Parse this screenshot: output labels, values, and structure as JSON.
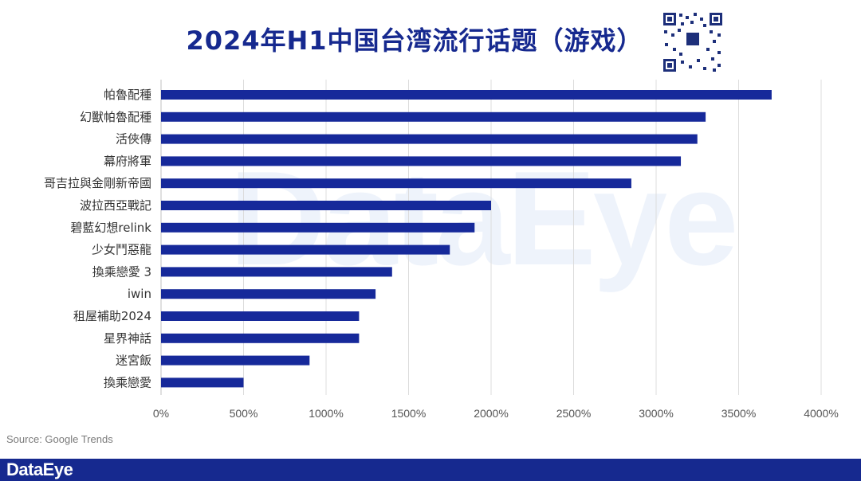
{
  "title": "2024年H1中国台湾流行话题（游戏）",
  "watermark": "DataEye",
  "source": "Source: Google Trends",
  "footer_logo": "DataEye",
  "colors": {
    "bar": "#16299a",
    "title": "#16298f",
    "footer": "#16298f"
  },
  "chart_data": {
    "type": "bar",
    "orientation": "horizontal",
    "title": "2024年H1中国台湾流行话题（游戏）",
    "xlabel": "",
    "ylabel": "",
    "xlim": [
      0,
      4000
    ],
    "xticks": [
      0,
      500,
      1000,
      1500,
      2000,
      2500,
      3000,
      3500,
      4000
    ],
    "xtick_labels": [
      "0%",
      "500%",
      "1000%",
      "1500%",
      "2000%",
      "2500%",
      "3000%",
      "3500%",
      "4000%"
    ],
    "grid": "vertical",
    "categories": [
      "帕魯配種",
      "幻獸帕魯配種",
      "活俠傳",
      "幕府將軍",
      "哥吉拉與金剛新帝國",
      "波拉西亞戰記",
      "碧藍幻想relink",
      "少女鬥惡龍",
      "換乘戀愛 3",
      "iwin",
      "租屋補助2024",
      "星界神話",
      "迷宮飯",
      "換乘戀愛"
    ],
    "values": [
      3700,
      3300,
      3250,
      3150,
      2850,
      2000,
      1900,
      1750,
      1400,
      1300,
      1200,
      1200,
      900,
      500
    ]
  }
}
